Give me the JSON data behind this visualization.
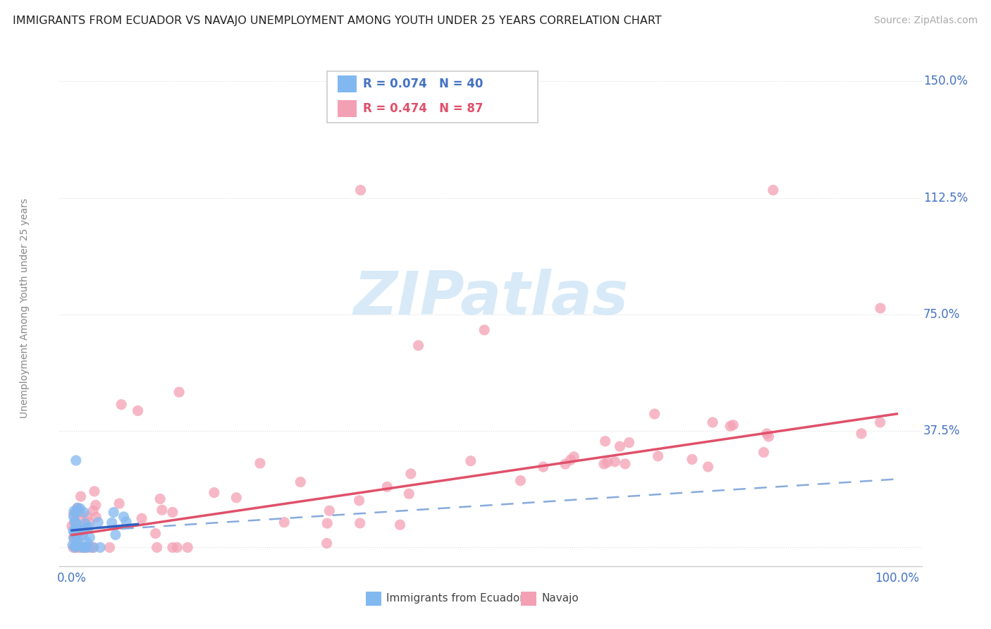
{
  "title": "IMMIGRANTS FROM ECUADOR VS NAVAJO UNEMPLOYMENT AMONG YOUTH UNDER 25 YEARS CORRELATION CHART",
  "source": "Source: ZipAtlas.com",
  "ylabel": "Unemployment Among Youth under 25 years",
  "series1_color": "#82b8f0",
  "series2_color": "#f4a0b4",
  "trendline1_color": "#3060c0",
  "trendline2_color": "#e0506a",
  "trendline_dashed_color": "#88aadd",
  "watermark_text": "ZIPatlas",
  "watermark_color": "#d8eaf8",
  "background_color": "#ffffff",
  "grid_color": "#dddddd",
  "title_color": "#222222",
  "source_color": "#aaaaaa",
  "axis_label_color": "#4472c4",
  "ylabel_color": "#888888",
  "legend_text_color1": "#4472c4",
  "legend_text_color2": "#e0506a",
  "legend1_text": "R = 0.074   N = 40",
  "legend2_text": "R = 0.474   N = 87",
  "bottom_legend1": "Immigrants from Ecuador",
  "bottom_legend2": "Navajo",
  "ytick_vals": [
    0.0,
    0.375,
    0.75,
    1.125,
    1.5
  ],
  "ytick_labels": [
    "",
    "37.5%",
    "75.0%",
    "112.5%",
    "150.0%"
  ],
  "xlim": [
    0.0,
    1.0
  ],
  "ylim": [
    -0.06,
    1.6
  ],
  "title_fontsize": 11.5,
  "source_fontsize": 10,
  "axis_tick_fontsize": 12,
  "legend_fontsize": 12,
  "ylabel_fontsize": 10,
  "marker_size": 120
}
